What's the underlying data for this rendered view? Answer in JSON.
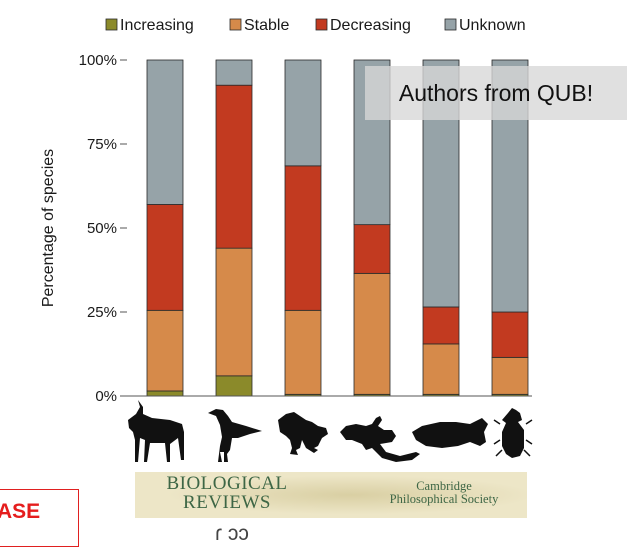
{
  "chart_data": {
    "type": "bar",
    "stacked": true,
    "title": "",
    "xlabel": "",
    "ylabel": "Percentage of species",
    "ylim": [
      0,
      100
    ],
    "yticks": [
      "0%",
      "25%",
      "50%",
      "75%",
      "100%"
    ],
    "yticks_values": [
      0,
      25,
      50,
      75,
      100
    ],
    "categories": [
      "Mammals",
      "Birds",
      "Amphibians",
      "Reptiles",
      "Fish",
      "Insects"
    ],
    "series": [
      {
        "name": "Increasing",
        "color": "#8b8a2a",
        "values": [
          1.5,
          6,
          0.5,
          0.5,
          0.5,
          0.5
        ]
      },
      {
        "name": "Stable",
        "color": "#d68a4a",
        "values": [
          24,
          38,
          25,
          36,
          15,
          11
        ]
      },
      {
        "name": "Decreasing",
        "color": "#c23a20",
        "values": [
          31.5,
          48.5,
          43,
          14.5,
          11,
          13.5
        ]
      },
      {
        "name": "Unknown",
        "color": "#96a3a8",
        "values": [
          43,
          7.5,
          31.5,
          49,
          73.5,
          75
        ]
      }
    ],
    "legend_position": "top",
    "animal_icons": [
      "antelope-icon",
      "bird-icon",
      "frog-icon",
      "lizard-icon",
      "fish-icon",
      "beetle-icon"
    ]
  },
  "annotation": {
    "text": "Authors from QUB!"
  },
  "banner": {
    "title_line1": "BIOLOGICAL",
    "title_line2": "REVIEWS",
    "society_line1": "Cambridge",
    "society_line2": "Philosophical Society"
  },
  "release_label": "ASE",
  "bottom_partial_text": "ɾ       ɔɔ"
}
